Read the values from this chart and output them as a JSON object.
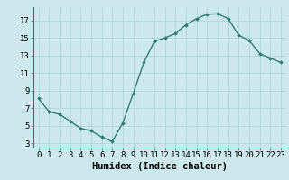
{
  "x": [
    0,
    1,
    2,
    3,
    4,
    5,
    6,
    7,
    8,
    9,
    10,
    11,
    12,
    13,
    14,
    15,
    16,
    17,
    18,
    19,
    20,
    21,
    22,
    23
  ],
  "y": [
    8.1,
    6.6,
    6.3,
    5.5,
    4.7,
    4.4,
    3.7,
    3.2,
    5.3,
    8.7,
    12.2,
    14.6,
    15.0,
    15.5,
    16.5,
    17.2,
    17.7,
    17.75,
    17.2,
    15.3,
    14.7,
    13.2,
    12.7,
    12.2
  ],
  "line_color": "#2e7d6e",
  "marker": "D",
  "marker_size": 1.8,
  "line_width": 1.0,
  "xlabel": "Humidex (Indice chaleur)",
  "xlim": [
    -0.5,
    23.5
  ],
  "ylim": [
    2.5,
    18.5
  ],
  "yticks": [
    3,
    5,
    7,
    9,
    11,
    13,
    15,
    17
  ],
  "xtick_labels": [
    "0",
    "1",
    "2",
    "3",
    "4",
    "5",
    "6",
    "7",
    "8",
    "9",
    "10",
    "11",
    "12",
    "13",
    "14",
    "15",
    "16",
    "17",
    "18",
    "19",
    "20",
    "21",
    "22",
    "23"
  ],
  "bg_color": "#cde8ed",
  "grid_color": "#b0d4da",
  "font_color": "#000000",
  "xlabel_fontsize": 7.5,
  "tick_fontsize": 6.5
}
